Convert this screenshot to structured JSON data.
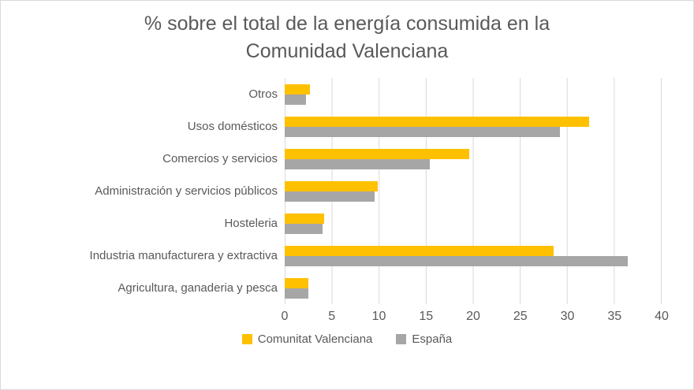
{
  "chart_data": {
    "type": "bar",
    "orientation": "horizontal",
    "title": "% sobre el total de la energía consumida en la Comunidad Valenciana",
    "title_lines": [
      "% sobre el total de la energía consumida en la",
      "Comunidad Valenciana"
    ],
    "categories": [
      "Otros",
      "Usos domésticos",
      "Comercios y servicios",
      "Administración y servicios públicos",
      "Hosteleria",
      "Industria manufacturera y extractiva",
      "Agricultura, ganaderia y pesca"
    ],
    "series": [
      {
        "name": "Comunitat Valenciana",
        "color": "#FFC000",
        "values": [
          2.7,
          32.4,
          19.6,
          9.9,
          4.2,
          28.6,
          2.5
        ]
      },
      {
        "name": "España",
        "color": "#A6A6A6",
        "values": [
          2.3,
          29.3,
          15.4,
          9.6,
          4.0,
          36.5,
          2.5
        ]
      }
    ],
    "xlim": [
      0,
      40
    ],
    "x_ticks": [
      0,
      5,
      10,
      15,
      20,
      25,
      30,
      35,
      40
    ],
    "grid": "vertical",
    "legend_position": "bottom",
    "colors": {
      "text": "#595959",
      "gridline": "#D9D9D9",
      "background": "#FFFFFF"
    }
  }
}
